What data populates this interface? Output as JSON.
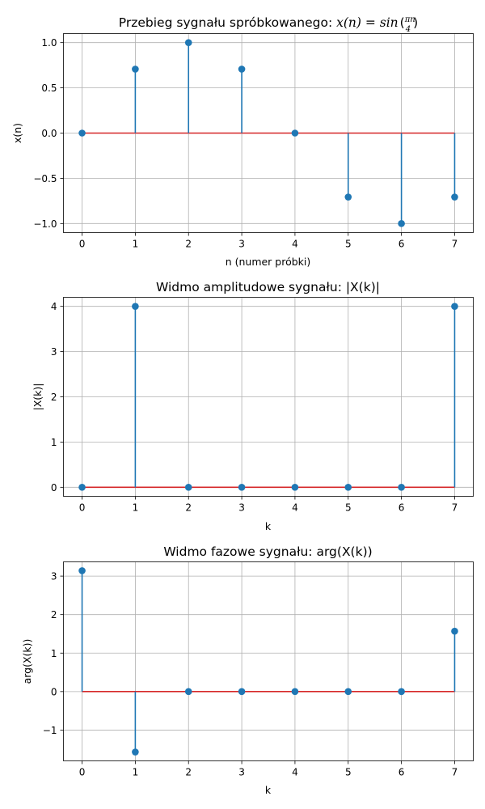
{
  "figure": {
    "panels": [
      {
        "title_text": "Przebieg sygnału spróbkowanego: ",
        "title_math": {
          "lhs": "x(n) = sin",
          "numerator": "πn",
          "denominator": "4"
        },
        "xlabel": "n (numer próbki)",
        "ylabel": "x(n)"
      },
      {
        "title_text": "Widmo amplitudowe sygnału: |X(k)|",
        "xlabel": "k",
        "ylabel": "|X(k)|"
      },
      {
        "title_text": "Widmo fazowe sygnału: arg(X(k))",
        "xlabel": "k",
        "ylabel": "arg(X(k))"
      }
    ]
  },
  "chart_data": [
    {
      "type": "stem",
      "title": "Przebieg sygnału spróbkowanego: x(n) = sin(πn/4)",
      "xlabel": "n (numer próbki)",
      "ylabel": "x(n)",
      "x": [
        0,
        1,
        2,
        3,
        4,
        5,
        6,
        7
      ],
      "y": [
        0,
        0.707,
        1.0,
        0.707,
        0,
        -0.707,
        -1.0,
        -0.707
      ],
      "baseline": 0,
      "xlim": [
        -0.35,
        7.35
      ],
      "ylim": [
        -1.1,
        1.1
      ],
      "xticks": [
        "0",
        "1",
        "2",
        "3",
        "4",
        "5",
        "6",
        "7"
      ],
      "yticks": [
        1.0,
        0.5,
        0.0,
        -0.5,
        -1.0
      ],
      "ytick_labels": [
        "1.0",
        "0.5",
        "0.0",
        "−0.5",
        "−1.0"
      ],
      "grid": true,
      "colors": {
        "stem": "#1f77b4",
        "marker": "#1f77b4",
        "baseline": "#d62728"
      }
    },
    {
      "type": "stem",
      "title": "Widmo amplitudowe sygnału: |X(k)|",
      "xlabel": "k",
      "ylabel": "|X(k)|",
      "x": [
        0,
        1,
        2,
        3,
        4,
        5,
        6,
        7
      ],
      "y": [
        0,
        4,
        0,
        0,
        0,
        0,
        0,
        4
      ],
      "baseline": 0,
      "xlim": [
        -0.35,
        7.35
      ],
      "ylim": [
        -0.2,
        4.2
      ],
      "xticks": [
        "0",
        "1",
        "2",
        "3",
        "4",
        "5",
        "6",
        "7"
      ],
      "yticks": [
        4,
        3,
        2,
        1,
        0
      ],
      "ytick_labels": [
        "4",
        "3",
        "2",
        "1",
        "0"
      ],
      "grid": true,
      "colors": {
        "stem": "#1f77b4",
        "marker": "#1f77b4",
        "baseline": "#d62728"
      }
    },
    {
      "type": "stem",
      "title": "Widmo fazowe sygnału: arg(X(k))",
      "xlabel": "k",
      "ylabel": "arg(X(k))",
      "x": [
        0,
        1,
        2,
        3,
        4,
        5,
        6,
        7
      ],
      "y": [
        3.14,
        -1.57,
        0,
        0,
        0,
        0,
        0,
        1.57
      ],
      "baseline": 0,
      "xlim": [
        -0.35,
        7.35
      ],
      "ylim": [
        -1.8,
        3.37
      ],
      "xticks": [
        "0",
        "1",
        "2",
        "3",
        "4",
        "5",
        "6",
        "7"
      ],
      "yticks": [
        3,
        2,
        1,
        0,
        -1
      ],
      "ytick_labels": [
        "3",
        "2",
        "1",
        "0",
        "−1"
      ],
      "grid": true,
      "colors": {
        "stem": "#1f77b4",
        "marker": "#1f77b4",
        "baseline": "#d62728"
      }
    }
  ]
}
